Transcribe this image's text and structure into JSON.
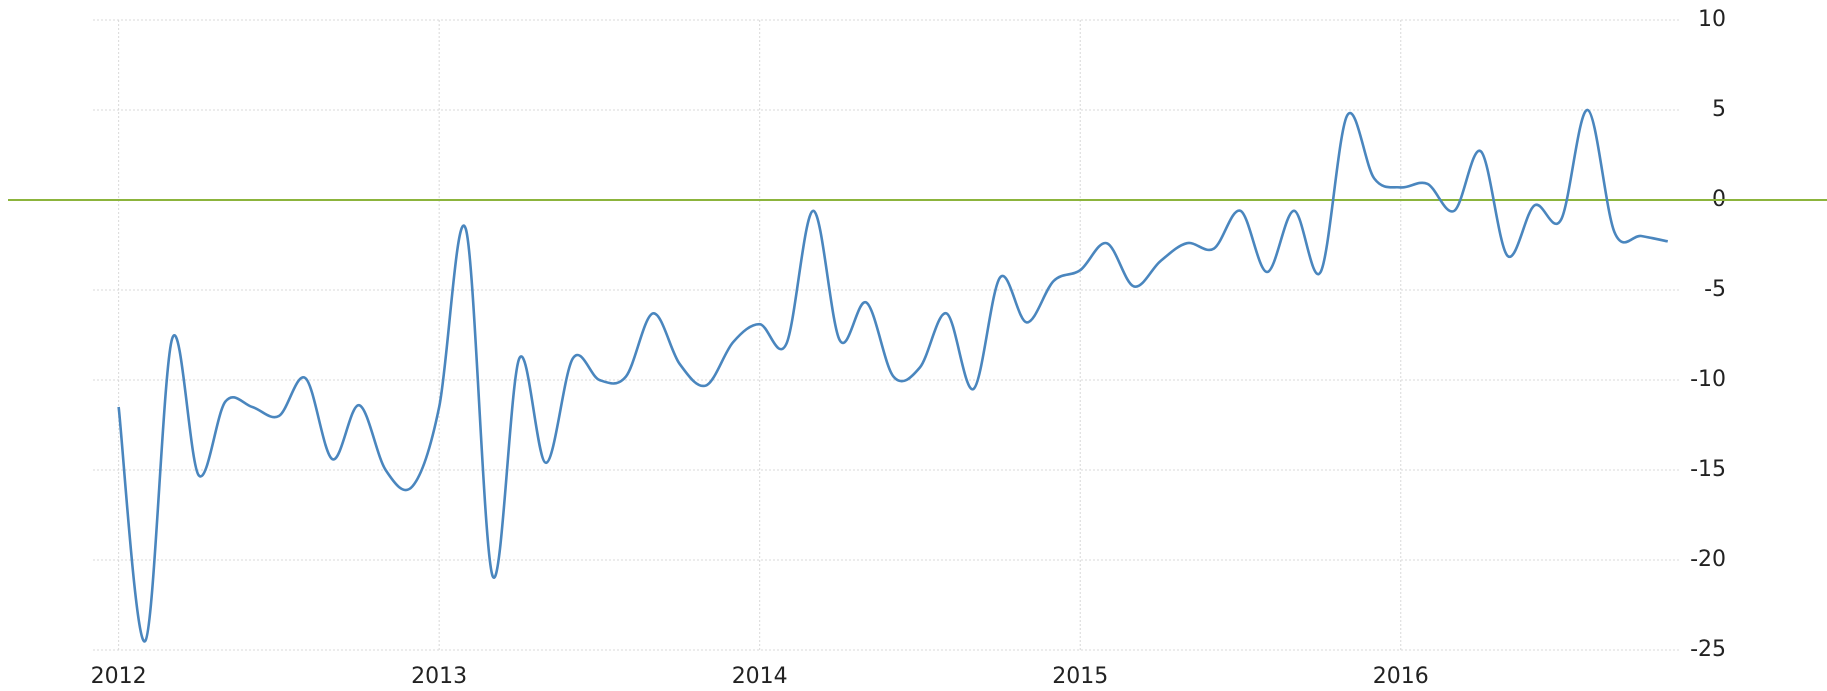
{
  "chart_data": {
    "type": "line",
    "x": [
      2012,
      2012.083,
      2012.167,
      2012.25,
      2012.333,
      2012.417,
      2012.5,
      2012.583,
      2012.667,
      2012.75,
      2012.833,
      2012.917,
      2013,
      2013.083,
      2013.167,
      2013.25,
      2013.333,
      2013.417,
      2013.5,
      2013.583,
      2013.667,
      2013.75,
      2013.833,
      2013.917,
      2014,
      2014.083,
      2014.167,
      2014.25,
      2014.333,
      2014.417,
      2014.5,
      2014.583,
      2014.667,
      2014.75,
      2014.833,
      2014.917,
      2015,
      2015.083,
      2015.167,
      2015.25,
      2015.333,
      2015.417,
      2015.5,
      2015.583,
      2015.667,
      2015.75,
      2015.833,
      2015.917,
      2016,
      2016.083,
      2016.167,
      2016.25,
      2016.333,
      2016.417,
      2016.5,
      2016.583,
      2016.667,
      2016.75,
      2016.833
    ],
    "series": [
      {
        "color": "#4a86be",
        "values": [
          -11.5,
          -24.5,
          -7.7,
          -15.3,
          -11.2,
          -11.5,
          -12.0,
          -9.9,
          -14.4,
          -11.4,
          -15.0,
          -15.9,
          -11.5,
          -1.6,
          -20.9,
          -8.8,
          -14.6,
          -8.8,
          -10.0,
          -9.8,
          -6.3,
          -9.1,
          -10.3,
          -7.9,
          -6.9,
          -8.0,
          -0.6,
          -7.8,
          -5.7,
          -9.8,
          -9.3,
          -6.3,
          -10.5,
          -4.3,
          -6.8,
          -4.5,
          -3.9,
          -2.4,
          -4.8,
          -3.4,
          -2.4,
          -2.7,
          -0.6,
          -4.0,
          -0.6,
          -4.0,
          4.7,
          1.2,
          0.7,
          0.9,
          -0.6,
          2.7,
          -3.1,
          -0.3,
          -1.1,
          5.0,
          -1.8,
          -2.0,
          -2.3
        ]
      }
    ],
    "xlim": [
      2011.92,
      2016.84
    ],
    "xticks": [
      2012,
      2013,
      2014,
      2015,
      2016
    ],
    "ylim": [
      -25,
      10
    ],
    "yticks": [
      10,
      5,
      0,
      -5,
      -10,
      -15,
      -20,
      -25
    ],
    "grid": true,
    "hline": {
      "value": 0,
      "color": "#8cb43c"
    }
  }
}
